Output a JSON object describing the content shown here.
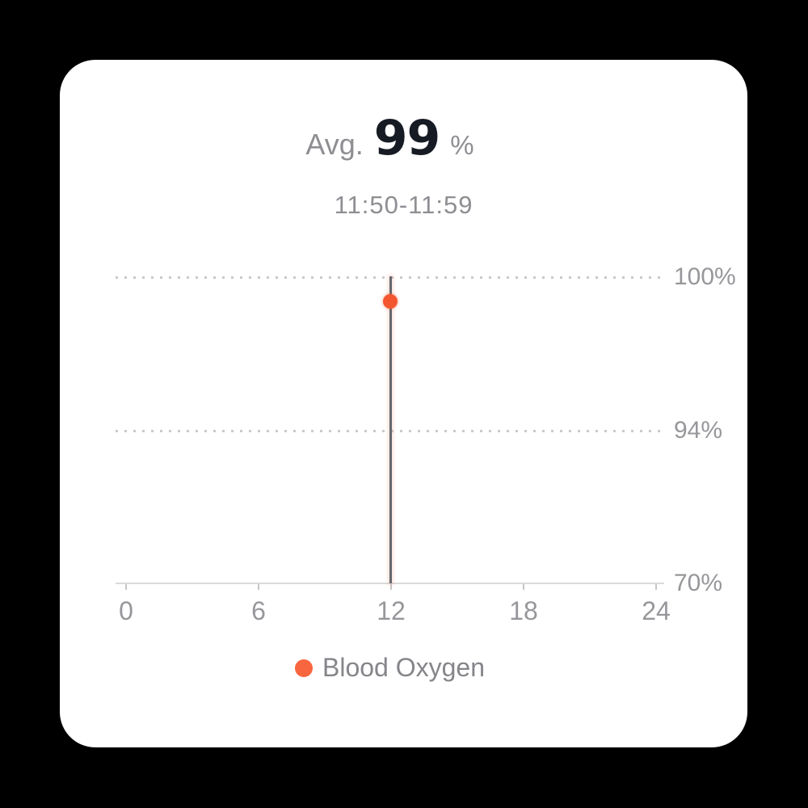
{
  "card": {
    "header": {
      "avg_label": "Avg.",
      "avg_value": "99",
      "avg_unit": "%",
      "time_range": "11:50-11:59"
    },
    "legend": {
      "label": "Blood Oxygen",
      "dot_color": "#F8663F"
    }
  },
  "chart_data": {
    "type": "scatter",
    "title": "Avg. 99 %",
    "subtitle": "11:50-11:59",
    "series": [
      {
        "name": "Blood Oxygen",
        "points": [
          {
            "x": 12,
            "y": 99
          }
        ],
        "marker_color": "#F4562F"
      }
    ],
    "xlabel": "",
    "ylabel": "",
    "xlim": [
      0,
      24
    ],
    "ylim": [
      70,
      100
    ],
    "x_ticks": [
      0,
      6,
      12,
      18,
      24
    ],
    "x_tick_labels": [
      "0",
      "6",
      "12",
      "18",
      "24"
    ],
    "y_tick_labels": [
      "100%",
      "94%",
      "70%"
    ],
    "y_gridline_values": [
      100,
      94
    ],
    "grid": "horizontal dotted gridlines at 100% and 94%, solid baseline at 70%",
    "selection_line": {
      "x": 12,
      "color": "#64686E"
    },
    "legend_position": "bottom",
    "legend_entries": [
      "Blood Oxygen"
    ]
  },
  "colors": {
    "background": "#000000",
    "card_background": "#FFFFFF",
    "accent_orange": "#F4562F",
    "legend_orange": "#F8663F",
    "value_text": "#171B24",
    "secondary_text": "#8E8E93",
    "axis_text": "#97979B",
    "gridline": "#C9C9CE",
    "axis_line": "#DADADC",
    "selection_line": "#64686E"
  }
}
